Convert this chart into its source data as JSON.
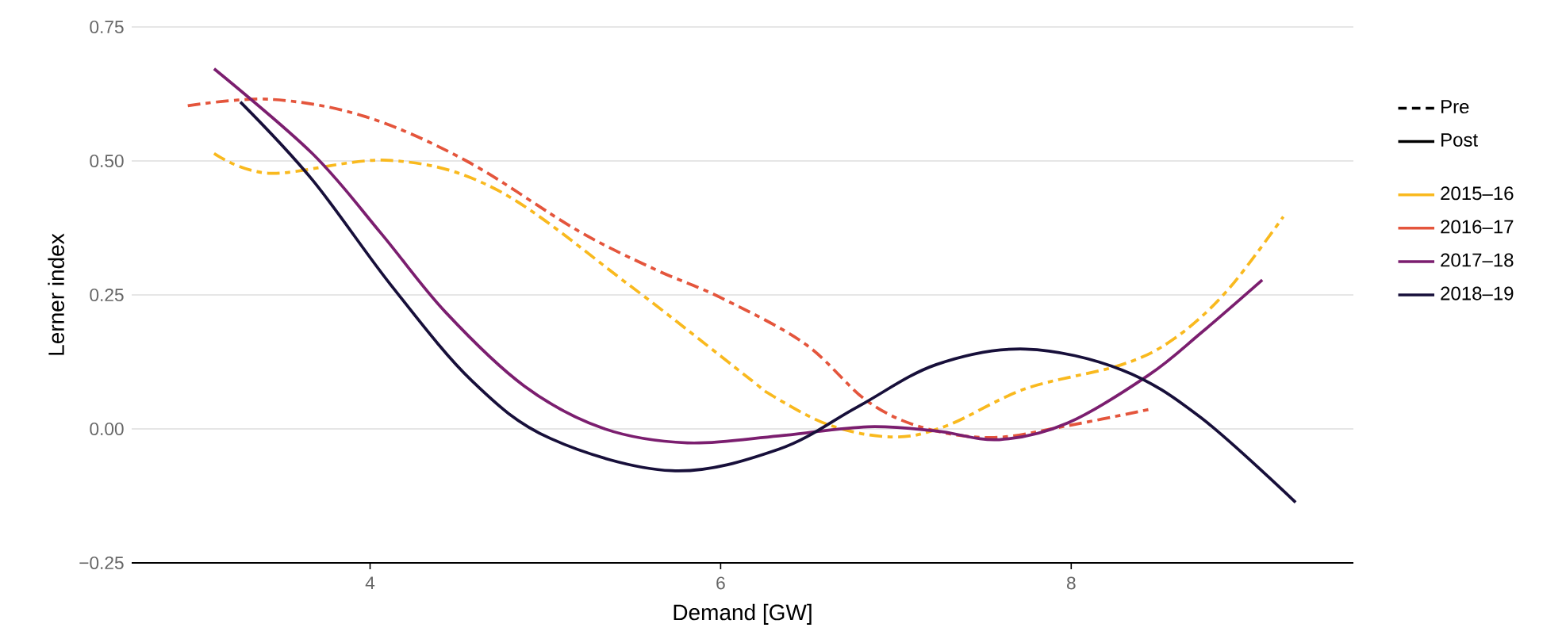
{
  "chart_data": {
    "type": "line",
    "xlabel": "Demand [GW]",
    "ylabel": "Lerner index",
    "xlim": [
      2.64,
      9.61
    ],
    "ylim": [
      -0.25,
      0.75
    ],
    "xticks": [
      4,
      6,
      8
    ],
    "yticks": [
      {
        "value": -0.25,
        "label": "−0.25"
      },
      {
        "value": 0,
        "label": "0.00"
      },
      {
        "value": 0.25,
        "label": "0.25"
      },
      {
        "value": 0.5,
        "label": "0.50"
      },
      {
        "value": 0.75,
        "label": "0.75"
      }
    ],
    "grid": "y",
    "legend": "right",
    "annotations": [
      "Pre",
      "Post"
    ],
    "series": [
      {
        "name": "2015–16",
        "color": "#f9b91e",
        "line_style": "dashed",
        "x": [
          3.11,
          3.43,
          4.12,
          4.73,
          5.48,
          6.14,
          6.3,
          6.63,
          6.99,
          7.29,
          7.74,
          8.29,
          8.59,
          8.89,
          9.21
        ],
        "values": [
          0.514,
          0.477,
          0.501,
          0.445,
          0.268,
          0.1,
          0.061,
          0.006,
          -0.015,
          0.006,
          0.075,
          0.12,
          0.169,
          0.258,
          0.396
        ]
      },
      {
        "name": "2016–17",
        "color": "#e4553c",
        "line_style": "dashed",
        "x": [
          2.96,
          3.43,
          3.97,
          4.55,
          5.18,
          5.63,
          6.0,
          6.48,
          6.84,
          7.17,
          7.56,
          7.98,
          8.44
        ],
        "values": [
          0.603,
          0.615,
          0.583,
          0.5,
          0.371,
          0.297,
          0.245,
          0.159,
          0.051,
          0.001,
          -0.016,
          0.006,
          0.036
        ]
      },
      {
        "name": "2017–18",
        "color": "#7b1e6f",
        "line_style": "solid",
        "x": [
          3.11,
          3.67,
          4.06,
          4.43,
          4.88,
          5.33,
          5.81,
          6.33,
          6.84,
          7.23,
          7.59,
          7.98,
          8.44,
          8.74,
          9.09
        ],
        "values": [
          0.672,
          0.514,
          0.366,
          0.218,
          0.08,
          0.001,
          -0.026,
          -0.013,
          0.004,
          -0.004,
          -0.02,
          0.011,
          0.1,
          0.179,
          0.278
        ]
      },
      {
        "name": "2018–19",
        "color": "#170f3a",
        "line_style": "solid",
        "x": [
          3.26,
          3.67,
          4.12,
          4.58,
          5.03,
          5.72,
          6.33,
          6.78,
          7.23,
          7.74,
          8.29,
          8.74,
          9.28
        ],
        "values": [
          0.61,
          0.465,
          0.268,
          0.09,
          -0.018,
          -0.078,
          -0.038,
          0.041,
          0.12,
          0.149,
          0.11,
          0.021,
          -0.137
        ]
      }
    ]
  }
}
